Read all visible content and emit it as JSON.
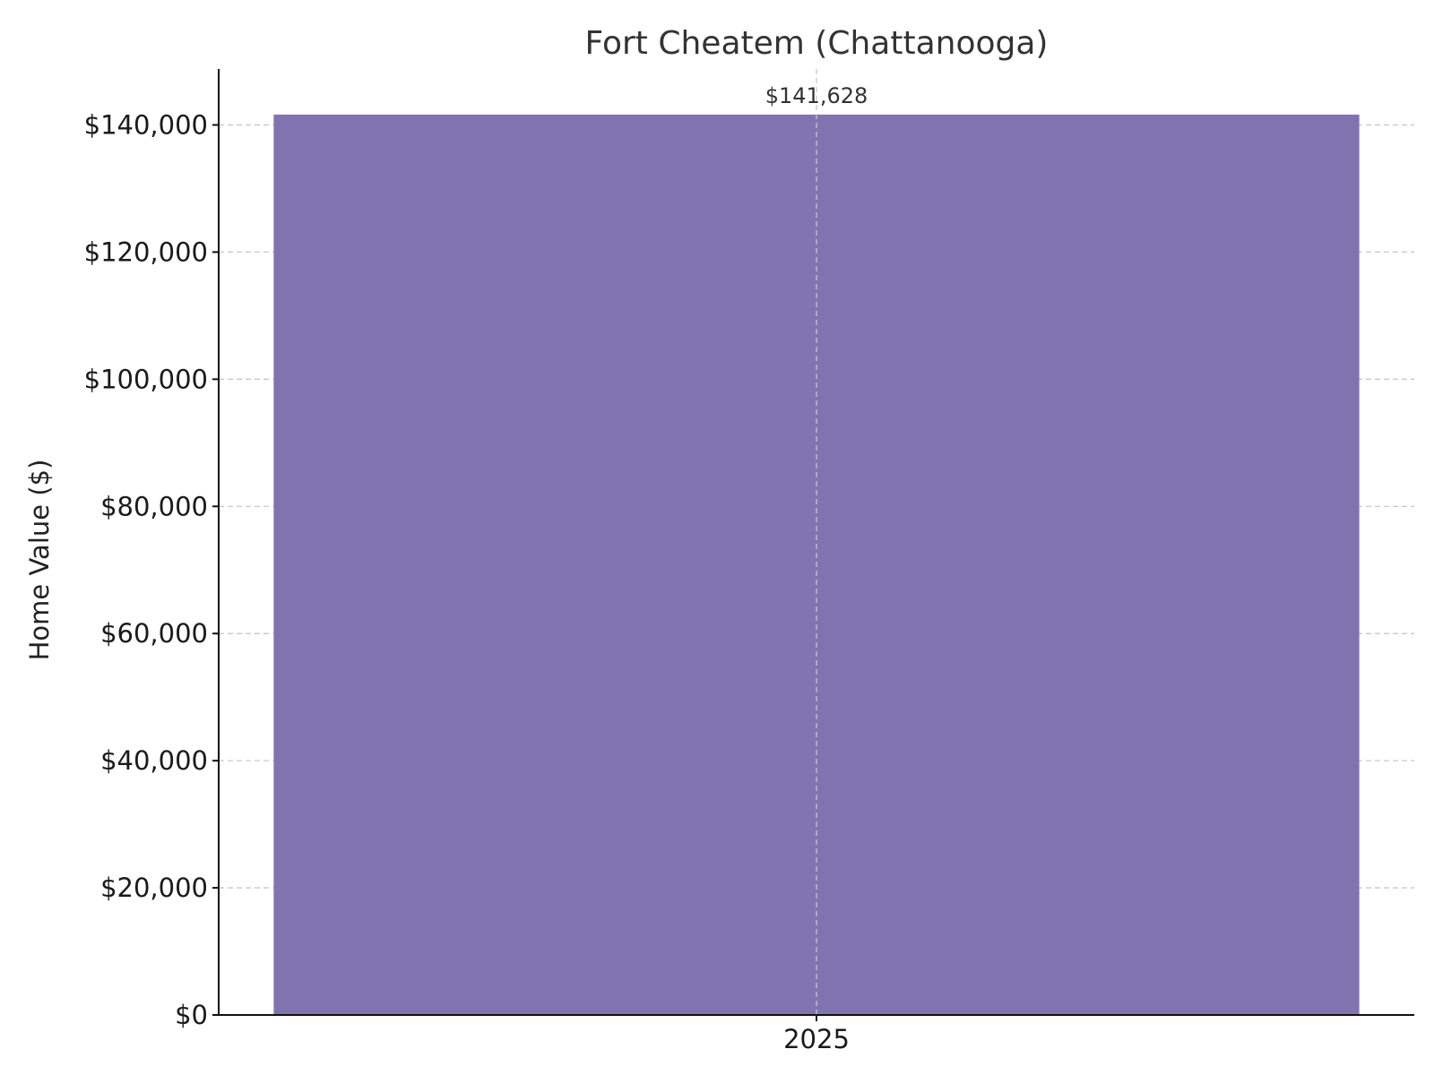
{
  "chart_data": {
    "type": "bar",
    "title": "Fort Cheatem (Chattanooga)",
    "xlabel": "",
    "ylabel": "Home Value ($)",
    "categories": [
      "2025"
    ],
    "values": [
      141628
    ],
    "data_labels": [
      "$141,628"
    ],
    "ylim": [
      0,
      148800
    ],
    "yticks": [
      0,
      20000,
      40000,
      60000,
      80000,
      100000,
      120000,
      140000
    ],
    "ytick_labels": [
      "$0",
      "$20,000",
      "$40,000",
      "$60,000",
      "$80,000",
      "$100,000",
      "$120,000",
      "$140,000"
    ],
    "grid": true,
    "legend": "none",
    "bar_color": "#8074b0"
  }
}
